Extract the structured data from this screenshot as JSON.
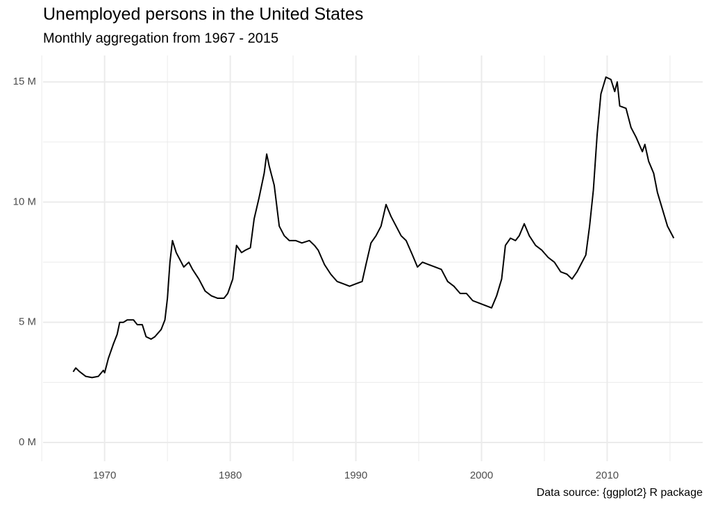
{
  "chart_data": {
    "type": "line",
    "title": "Unemployed persons in the United States",
    "subtitle": "Monthly aggregation from 1967 - 2015",
    "caption": "Data source: {ggplot2} R package",
    "x": [
      1967.5,
      1967.7,
      1968.0,
      1968.5,
      1969.0,
      1969.5,
      1969.9,
      1970.0,
      1970.3,
      1970.7,
      1971.0,
      1971.2,
      1971.5,
      1971.8,
      1972.3,
      1972.6,
      1973.0,
      1973.3,
      1973.7,
      1974.0,
      1974.5,
      1974.8,
      1975.0,
      1975.2,
      1975.4,
      1975.7,
      1976.0,
      1976.3,
      1976.7,
      1977.0,
      1977.5,
      1978.0,
      1978.5,
      1979.0,
      1979.5,
      1979.8,
      1980.2,
      1980.5,
      1980.9,
      1981.2,
      1981.6,
      1981.9,
      1982.3,
      1982.7,
      1982.9,
      1983.1,
      1983.5,
      1983.9,
      1984.3,
      1984.7,
      1985.2,
      1985.7,
      1986.3,
      1986.7,
      1987.0,
      1987.5,
      1988.0,
      1988.5,
      1989.0,
      1989.5,
      1990.0,
      1990.5,
      1990.8,
      1991.2,
      1991.6,
      1992.0,
      1992.4,
      1992.8,
      1993.2,
      1993.6,
      1994.0,
      1994.5,
      1994.9,
      1995.3,
      1995.8,
      1996.3,
      1996.8,
      1997.3,
      1997.8,
      1998.3,
      1998.8,
      1999.3,
      1999.8,
      2000.3,
      2000.8,
      2001.2,
      2001.6,
      2001.9,
      2002.3,
      2002.7,
      2003.0,
      2003.4,
      2003.8,
      2004.3,
      2004.8,
      2005.3,
      2005.8,
      2006.3,
      2006.8,
      2007.2,
      2007.6,
      2007.9,
      2008.3,
      2008.6,
      2008.9,
      2009.2,
      2009.5,
      2009.9,
      2010.3,
      2010.6,
      2010.8,
      2011.0,
      2011.5,
      2011.9,
      2012.3,
      2012.8,
      2013.0,
      2013.3,
      2013.7,
      2014.0,
      2014.4,
      2014.8,
      2015.0,
      2015.3
    ],
    "series": [
      {
        "name": "Unemployed persons",
        "color": "#000000",
        "values": [
          2940000,
          3100000,
          2950000,
          2750000,
          2700000,
          2750000,
          3000000,
          2900000,
          3500000,
          4100000,
          4500000,
          5000000,
          5000000,
          5100000,
          5100000,
          4900000,
          4900000,
          4400000,
          4300000,
          4400000,
          4700000,
          5100000,
          6000000,
          7500000,
          8400000,
          7900000,
          7600000,
          7300000,
          7500000,
          7200000,
          6800000,
          6300000,
          6100000,
          6000000,
          6000000,
          6200000,
          6800000,
          8200000,
          7900000,
          8000000,
          8100000,
          9300000,
          10200000,
          11200000,
          12000000,
          11500000,
          10700000,
          9000000,
          8600000,
          8400000,
          8400000,
          8300000,
          8400000,
          8200000,
          8000000,
          7400000,
          7000000,
          6700000,
          6600000,
          6500000,
          6600000,
          6700000,
          7400000,
          8300000,
          8600000,
          9000000,
          9900000,
          9400000,
          9000000,
          8600000,
          8400000,
          7800000,
          7300000,
          7500000,
          7400000,
          7300000,
          7200000,
          6700000,
          6500000,
          6200000,
          6200000,
          5900000,
          5800000,
          5700000,
          5600000,
          6100000,
          6800000,
          8200000,
          8500000,
          8400000,
          8600000,
          9100000,
          8600000,
          8200000,
          8000000,
          7700000,
          7500000,
          7100000,
          7000000,
          6800000,
          7100000,
          7400000,
          7800000,
          9000000,
          10500000,
          12800000,
          14500000,
          15200000,
          15100000,
          14600000,
          15000000,
          14000000,
          13900000,
          13100000,
          12700000,
          12100000,
          12400000,
          11700000,
          11200000,
          10400000,
          9700000,
          9000000,
          8800000,
          8500000
        ]
      }
    ],
    "xlim": [
      1965.1,
      2017.6
    ],
    "ylim": [
      -780000,
      16100000
    ],
    "xticks": [
      1970,
      1980,
      1990,
      2000,
      2010
    ],
    "xminorticks": [
      1965,
      1975,
      1985,
      1995,
      2005,
      2015
    ],
    "yticks": [
      {
        "value": 0,
        "label": "0 M"
      },
      {
        "value": 5000000,
        "label": "5 M"
      },
      {
        "value": 10000000,
        "label": "10 M"
      },
      {
        "value": 15000000,
        "label": "15 M"
      }
    ],
    "yminorticks": [
      2500000,
      7500000,
      12500000
    ],
    "grid": true
  }
}
